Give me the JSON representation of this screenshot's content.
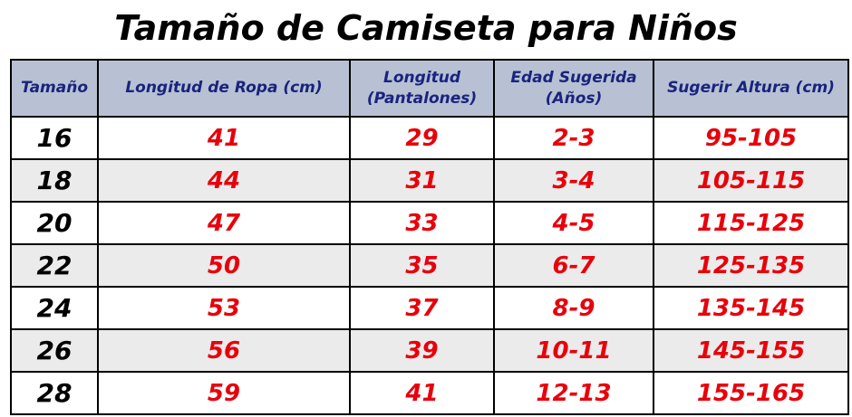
{
  "title": "Tamaño de Camiseta para Niños",
  "colors": {
    "header_bg": "#b7c1d3",
    "header_text": "#1a237e",
    "value_text": "#e8000b",
    "size_text": "#000000",
    "row_alt_bg": "#ebebeb"
  },
  "table": {
    "headers": [
      {
        "line1": "Tamaño",
        "line2": ""
      },
      {
        "line1": "Longitud de Ropa (cm)",
        "line2": ""
      },
      {
        "line1": "Longitud",
        "line2": "(Pantalones)"
      },
      {
        "line1": "Edad Sugerida",
        "line2": "(Años)"
      },
      {
        "line1": "Sugerir Altura (cm)",
        "line2": ""
      }
    ],
    "rows": [
      [
        "16",
        "41",
        "29",
        "2-3",
        "95-105"
      ],
      [
        "18",
        "44",
        "31",
        "3-4",
        "105-115"
      ],
      [
        "20",
        "47",
        "33",
        "4-5",
        "115-125"
      ],
      [
        "22",
        "50",
        "35",
        "6-7",
        "125-135"
      ],
      [
        "24",
        "53",
        "37",
        "8-9",
        "135-145"
      ],
      [
        "26",
        "56",
        "39",
        "10-11",
        "145-155"
      ],
      [
        "28",
        "59",
        "41",
        "12-13",
        "155-165"
      ]
    ]
  }
}
